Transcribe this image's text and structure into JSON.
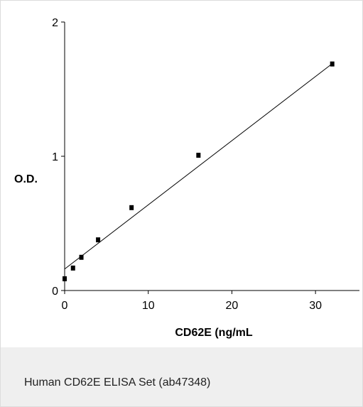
{
  "caption": "Human CD62E ELISA Set (ab47348)",
  "chart_data": {
    "type": "scatter",
    "xlabel": "CD62E (ng/mL",
    "ylabel": "O.D.",
    "xlim": [
      0,
      35
    ],
    "ylim": [
      0,
      2
    ],
    "x_ticks": [
      "0",
      "10",
      "20",
      "30"
    ],
    "y_ticks": [
      "0",
      "1",
      "2"
    ],
    "series": [
      {
        "x": [
          0,
          1,
          2,
          4,
          8,
          16,
          32
        ],
        "y": [
          0.09,
          0.17,
          0.25,
          0.38,
          0.62,
          1.01,
          1.69
        ]
      }
    ],
    "fit_line": {
      "x": [
        0,
        32
      ],
      "y": [
        0.16,
        1.69
      ]
    },
    "grid": false,
    "colors": {
      "marker": "#000000",
      "line": "#000000",
      "axis": "#000000"
    }
  }
}
